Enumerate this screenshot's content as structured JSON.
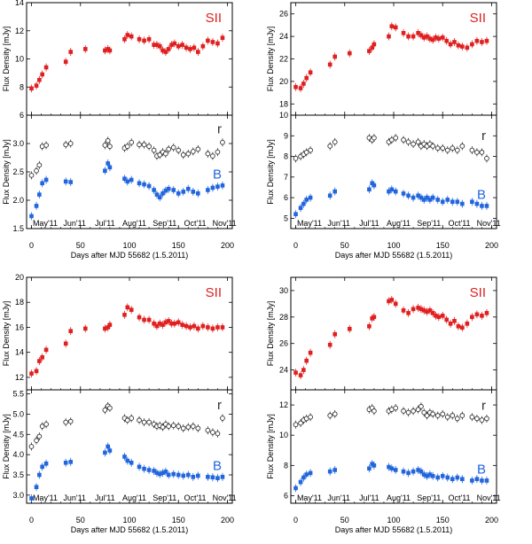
{
  "figure": {
    "ylabel": "Flux Density [mJy]",
    "xlabel": "Days after MJD 55682 (1.5.2011)",
    "month_labels": [
      "May'11",
      "Jun'11",
      "Jul'11",
      "Aug'11",
      "Sep'11",
      "Oct'11",
      "Nov'11"
    ],
    "month_days": [
      14,
      44,
      75,
      105,
      136,
      167,
      197
    ],
    "xticks": [
      0,
      50,
      100,
      150,
      200
    ],
    "xlim": [
      -5,
      205
    ],
    "colors": {
      "SII": "#e02020",
      "r": "#333333",
      "B": "#2266dd"
    }
  },
  "chart_data": [
    {
      "type": "scatter",
      "title": "",
      "xlabel": "",
      "ylabel": "Flux Density [mJy]",
      "xlim": [
        -5,
        205
      ],
      "ylim": [
        6,
        14
      ],
      "yticks": [
        6,
        8,
        10,
        12,
        14
      ],
      "series": [
        {
          "name": "SII",
          "marker": "square",
          "x": [
            0,
            5,
            8,
            11,
            15,
            35,
            40,
            55,
            75,
            78,
            80,
            95,
            98,
            102,
            110,
            115,
            120,
            125,
            128,
            131,
            134,
            137,
            140,
            143,
            146,
            150,
            154,
            158,
            162,
            166,
            170,
            175,
            180,
            185,
            190,
            195
          ],
          "y": [
            7.9,
            8.1,
            8.5,
            8.9,
            9.4,
            9.8,
            10.5,
            10.7,
            10.6,
            10.7,
            10.6,
            11.4,
            11.7,
            11.6,
            11.4,
            11.3,
            11.4,
            11.0,
            11.0,
            10.9,
            10.6,
            10.5,
            10.7,
            11.0,
            11.1,
            10.9,
            11.0,
            10.8,
            10.7,
            10.8,
            10.5,
            10.9,
            11.3,
            11.2,
            11.1,
            11.5
          ]
        }
      ]
    },
    {
      "type": "scatter",
      "title": "",
      "xlabel": "Days after MJD 55682 (1.5.2011)",
      "ylabel": "Flux Density [mJy]",
      "xlim": [
        -5,
        205
      ],
      "ylim": [
        1.5,
        3.5
      ],
      "yticks": [
        1.5,
        2.0,
        2.5,
        3.0
      ],
      "series": [
        {
          "name": "r",
          "marker": "open-circle",
          "x": [
            0,
            5,
            8,
            11,
            15,
            35,
            40,
            75,
            78,
            80,
            95,
            98,
            102,
            110,
            115,
            120,
            125,
            128,
            131,
            134,
            137,
            140,
            145,
            150,
            155,
            160,
            165,
            170,
            180,
            185,
            190,
            195
          ],
          "y": [
            2.44,
            2.52,
            2.62,
            2.95,
            2.97,
            2.98,
            3.0,
            2.97,
            3.05,
            2.95,
            2.92,
            2.95,
            3.02,
            2.98,
            2.98,
            2.95,
            2.88,
            2.78,
            2.8,
            2.85,
            2.82,
            2.9,
            2.93,
            2.88,
            2.8,
            2.82,
            2.86,
            2.9,
            2.82,
            2.78,
            2.85,
            3.02
          ]
        },
        {
          "name": "B",
          "marker": "square",
          "x": [
            0,
            5,
            8,
            11,
            15,
            35,
            40,
            75,
            78,
            80,
            95,
            98,
            102,
            110,
            115,
            120,
            125,
            128,
            131,
            134,
            137,
            140,
            145,
            150,
            155,
            160,
            165,
            170,
            180,
            185,
            190,
            195
          ],
          "y": [
            1.72,
            1.9,
            2.1,
            2.3,
            2.36,
            2.33,
            2.32,
            2.52,
            2.65,
            2.58,
            2.38,
            2.33,
            2.36,
            2.3,
            2.28,
            2.25,
            2.18,
            2.1,
            2.05,
            2.12,
            2.17,
            2.2,
            2.18,
            2.12,
            2.15,
            2.2,
            2.15,
            2.12,
            2.18,
            2.22,
            2.24,
            2.26
          ]
        }
      ]
    },
    {
      "type": "scatter",
      "title": "",
      "xlabel": "",
      "ylabel": "Flux Density [mJy]",
      "xlim": [
        -5,
        205
      ],
      "ylim": [
        17,
        27
      ],
      "yticks": [
        18,
        20,
        22,
        24,
        26
      ],
      "series": [
        {
          "name": "SII",
          "marker": "square",
          "x": [
            0,
            5,
            8,
            11,
            15,
            35,
            40,
            55,
            75,
            78,
            80,
            95,
            98,
            102,
            110,
            115,
            120,
            125,
            128,
            131,
            134,
            137,
            140,
            143,
            146,
            150,
            154,
            158,
            162,
            166,
            170,
            175,
            180,
            185,
            190,
            195
          ],
          "y": [
            19.5,
            19.4,
            19.8,
            20.3,
            20.8,
            21.5,
            22.2,
            22.5,
            22.7,
            23.0,
            23.3,
            24.0,
            24.9,
            24.8,
            24.3,
            24.0,
            24.0,
            24.3,
            24.1,
            23.9,
            24.0,
            23.8,
            23.7,
            23.9,
            23.8,
            23.9,
            23.6,
            23.3,
            23.5,
            23.2,
            23.1,
            23.0,
            23.3,
            23.6,
            23.5,
            23.6
          ]
        }
      ]
    },
    {
      "type": "scatter",
      "title": "",
      "xlabel": "Days after MJD 55682 (1.5.2011)",
      "ylabel": "Flux Density [mJy]",
      "xlim": [
        -5,
        205
      ],
      "ylim": [
        4.5,
        10
      ],
      "yticks": [
        5,
        6,
        7,
        8,
        9,
        10
      ],
      "series": [
        {
          "name": "r",
          "marker": "open-circle",
          "x": [
            0,
            5,
            8,
            11,
            15,
            35,
            40,
            75,
            78,
            80,
            95,
            98,
            102,
            110,
            115,
            120,
            125,
            128,
            131,
            134,
            137,
            140,
            145,
            150,
            155,
            160,
            165,
            170,
            180,
            185,
            190,
            195
          ],
          "y": [
            7.9,
            8.0,
            8.1,
            8.2,
            8.3,
            8.5,
            8.7,
            8.9,
            8.8,
            8.9,
            8.7,
            8.8,
            8.9,
            8.8,
            8.7,
            8.6,
            8.7,
            8.5,
            8.6,
            8.5,
            8.6,
            8.5,
            8.4,
            8.4,
            8.3,
            8.4,
            8.3,
            8.5,
            8.3,
            8.2,
            8.2,
            7.9
          ]
        },
        {
          "name": "B",
          "marker": "square",
          "x": [
            0,
            5,
            8,
            11,
            15,
            35,
            40,
            75,
            78,
            80,
            95,
            98,
            102,
            110,
            115,
            120,
            125,
            128,
            131,
            134,
            137,
            140,
            145,
            150,
            155,
            160,
            165,
            170,
            180,
            185,
            190,
            195
          ],
          "y": [
            5.2,
            5.5,
            5.7,
            5.9,
            6.0,
            6.1,
            6.3,
            6.4,
            6.7,
            6.6,
            6.3,
            6.4,
            6.3,
            6.2,
            6.1,
            6.0,
            6.1,
            6.0,
            5.9,
            6.0,
            5.9,
            6.0,
            5.9,
            5.8,
            5.9,
            5.8,
            5.8,
            5.7,
            5.8,
            5.7,
            5.6,
            5.6
          ]
        }
      ]
    },
    {
      "type": "scatter",
      "title": "",
      "xlabel": "",
      "ylabel": "Flux Density [mJy]",
      "xlim": [
        -5,
        205
      ],
      "ylim": [
        11,
        20
      ],
      "yticks": [
        12,
        14,
        16,
        18,
        20
      ],
      "series": [
        {
          "name": "SII",
          "marker": "square",
          "x": [
            0,
            5,
            8,
            11,
            15,
            35,
            40,
            55,
            75,
            78,
            80,
            95,
            98,
            102,
            110,
            115,
            120,
            125,
            128,
            131,
            134,
            137,
            140,
            143,
            146,
            150,
            154,
            158,
            162,
            166,
            170,
            175,
            180,
            185,
            190,
            195
          ],
          "y": [
            12.3,
            12.5,
            13.3,
            13.6,
            14.2,
            14.7,
            15.7,
            15.9,
            15.9,
            16.0,
            16.2,
            17.0,
            17.6,
            17.4,
            16.8,
            16.6,
            16.6,
            16.3,
            16.1,
            16.3,
            16.2,
            16.4,
            16.5,
            16.3,
            16.3,
            16.4,
            16.2,
            16.1,
            16.0,
            16.1,
            15.9,
            16.1,
            16.0,
            15.9,
            16.0,
            16.0
          ]
        }
      ]
    },
    {
      "type": "scatter",
      "title": "",
      "xlabel": "Days after MJD 55682 (1.5.2011)",
      "ylabel": "Flux Density [mJy]",
      "xlim": [
        -5,
        205
      ],
      "ylim": [
        2.8,
        5.6
      ],
      "yticks": [
        3.0,
        3.5,
        4.0,
        4.5,
        5.0,
        5.5
      ],
      "series": [
        {
          "name": "r",
          "marker": "open-circle",
          "x": [
            0,
            5,
            8,
            11,
            15,
            35,
            40,
            75,
            78,
            80,
            95,
            98,
            102,
            110,
            115,
            120,
            125,
            128,
            131,
            134,
            137,
            140,
            145,
            150,
            155,
            160,
            165,
            170,
            180,
            185,
            190,
            195
          ],
          "y": [
            4.2,
            4.35,
            4.45,
            4.7,
            4.75,
            4.8,
            4.82,
            5.1,
            5.2,
            5.15,
            4.9,
            4.85,
            4.9,
            4.85,
            4.8,
            4.8,
            4.75,
            4.7,
            4.72,
            4.68,
            4.75,
            4.7,
            4.72,
            4.7,
            4.65,
            4.68,
            4.7,
            4.65,
            4.6,
            4.55,
            4.52,
            4.9
          ]
        },
        {
          "name": "B",
          "marker": "square",
          "x": [
            0,
            5,
            8,
            11,
            15,
            35,
            40,
            75,
            78,
            80,
            95,
            98,
            102,
            110,
            115,
            120,
            125,
            128,
            131,
            134,
            137,
            140,
            145,
            150,
            155,
            160,
            165,
            170,
            180,
            185,
            190,
            195
          ],
          "y": [
            2.92,
            3.2,
            3.5,
            3.7,
            3.78,
            3.8,
            3.82,
            4.05,
            4.2,
            4.1,
            3.95,
            3.85,
            3.8,
            3.7,
            3.65,
            3.62,
            3.6,
            3.55,
            3.52,
            3.55,
            3.58,
            3.5,
            3.52,
            3.5,
            3.48,
            3.5,
            3.45,
            3.48,
            3.45,
            3.44,
            3.42,
            3.45
          ]
        }
      ]
    },
    {
      "type": "scatter",
      "title": "",
      "xlabel": "",
      "ylabel": "Flux Density [mJy]",
      "xlim": [
        -5,
        205
      ],
      "ylim": [
        22.5,
        31
      ],
      "yticks": [
        24,
        26,
        28,
        30
      ],
      "series": [
        {
          "name": "SII",
          "marker": "square",
          "x": [
            0,
            5,
            8,
            11,
            15,
            35,
            40,
            55,
            75,
            78,
            80,
            95,
            98,
            102,
            110,
            115,
            120,
            125,
            128,
            131,
            134,
            137,
            140,
            143,
            146,
            150,
            154,
            158,
            162,
            166,
            170,
            175,
            180,
            185,
            190,
            195
          ],
          "y": [
            23.8,
            23.6,
            24.0,
            24.7,
            25.3,
            25.9,
            26.7,
            27.1,
            27.3,
            27.9,
            28.0,
            29.2,
            29.3,
            29.0,
            28.5,
            28.3,
            28.6,
            28.7,
            28.6,
            28.5,
            28.4,
            28.5,
            28.3,
            28.1,
            28.0,
            28.1,
            27.8,
            27.5,
            27.7,
            27.3,
            27.2,
            27.5,
            28.0,
            28.2,
            28.1,
            28.3
          ]
        }
      ]
    },
    {
      "type": "scatter",
      "title": "",
      "xlabel": "Days after MJD 55682 (1.5.2011)",
      "ylabel": "Flux Density [mJy]",
      "xlim": [
        -5,
        205
      ],
      "ylim": [
        5.5,
        13
      ],
      "yticks": [
        6,
        8,
        10,
        12
      ],
      "series": [
        {
          "name": "r",
          "marker": "open-circle",
          "x": [
            0,
            5,
            8,
            11,
            15,
            35,
            40,
            75,
            78,
            80,
            95,
            98,
            102,
            110,
            115,
            120,
            125,
            128,
            131,
            134,
            137,
            140,
            145,
            150,
            155,
            160,
            165,
            170,
            180,
            185,
            190,
            195
          ],
          "y": [
            10.7,
            10.8,
            11.0,
            11.1,
            11.2,
            11.3,
            11.4,
            11.7,
            11.8,
            11.6,
            11.6,
            11.7,
            11.8,
            11.6,
            11.5,
            11.6,
            11.7,
            11.9,
            11.5,
            11.3,
            11.5,
            11.4,
            11.3,
            11.4,
            11.2,
            11.3,
            11.1,
            11.3,
            11.2,
            11.1,
            11.0,
            11.1
          ]
        },
        {
          "name": "B",
          "marker": "square",
          "x": [
            0,
            5,
            8,
            11,
            15,
            35,
            40,
            75,
            78,
            80,
            95,
            98,
            102,
            110,
            115,
            120,
            125,
            128,
            131,
            134,
            137,
            140,
            145,
            150,
            155,
            160,
            165,
            170,
            180,
            185,
            190,
            195
          ],
          "y": [
            6.5,
            6.9,
            7.2,
            7.4,
            7.5,
            7.6,
            7.7,
            7.8,
            8.1,
            8.0,
            7.9,
            7.8,
            7.7,
            7.6,
            7.5,
            7.6,
            7.7,
            7.6,
            7.4,
            7.3,
            7.4,
            7.3,
            7.2,
            7.3,
            7.2,
            7.1,
            7.2,
            7.1,
            7.0,
            7.1,
            7.0,
            7.0
          ]
        }
      ]
    }
  ]
}
